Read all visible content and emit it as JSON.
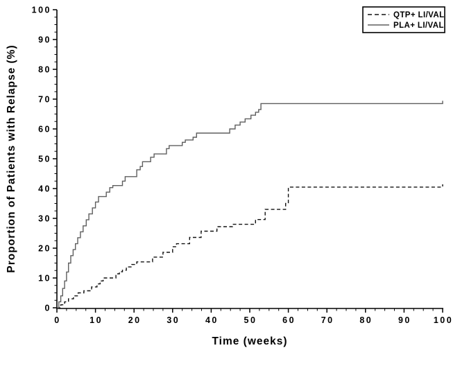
{
  "page": {
    "background": "#ffffff"
  },
  "chart_data": {
    "type": "line",
    "subtype": "kaplan-meier-step",
    "title": "",
    "xlabel": "Time (weeks)",
    "ylabel": "Proportion of Patients with Relapse (%)",
    "xlim": [
      0,
      100
    ],
    "ylim": [
      0,
      100
    ],
    "x_major_tick_step": 10,
    "x_minor_tick_step": 2.5,
    "y_major_tick_step": 10,
    "y_minor_tick_step": 2.5,
    "x_tick_labels": [
      "0",
      "10",
      "20",
      "30",
      "40",
      "50",
      "60",
      "70",
      "80",
      "90",
      "100"
    ],
    "y_tick_labels": [
      "0",
      "10",
      "20",
      "30",
      "40",
      "50",
      "60",
      "70",
      "80",
      "90",
      "100"
    ],
    "grid": false,
    "legend_position": "top-right",
    "axis_color": "#000000",
    "series": [
      {
        "name": "QTP+ LI/VAL",
        "line_style": "dashed",
        "color": "#111111",
        "points": [
          [
            0,
            0
          ],
          [
            1,
            1
          ],
          [
            2,
            2
          ],
          [
            3,
            3
          ],
          [
            4.3,
            4
          ],
          [
            5.5,
            5
          ],
          [
            7,
            5.7
          ],
          [
            9,
            7
          ],
          [
            10.4,
            8
          ],
          [
            11.2,
            9
          ],
          [
            12,
            10
          ],
          [
            15.3,
            11.4
          ],
          [
            16.2,
            12.1
          ],
          [
            17,
            12.6
          ],
          [
            18,
            13.7
          ],
          [
            19.4,
            14.5
          ],
          [
            20.7,
            15.4
          ],
          [
            24.8,
            17
          ],
          [
            27.5,
            18.6
          ],
          [
            30,
            20.5
          ],
          [
            31,
            21.5
          ],
          [
            34.4,
            23.6
          ],
          [
            37.4,
            25.7
          ],
          [
            41.5,
            27.2
          ],
          [
            45.5,
            28
          ],
          [
            51.5,
            29.6
          ],
          [
            54,
            33
          ],
          [
            59.3,
            35
          ],
          [
            60,
            40.5
          ],
          [
            100,
            40.5
          ]
        ]
      },
      {
        "name": "PLA+ LI/VAL",
        "line_style": "solid",
        "color": "#5e5e5e",
        "points": [
          [
            0,
            0
          ],
          [
            0.5,
            2
          ],
          [
            1,
            4
          ],
          [
            1.5,
            6.5
          ],
          [
            2,
            9
          ],
          [
            2.5,
            12
          ],
          [
            3,
            15
          ],
          [
            3.6,
            17.5
          ],
          [
            4.2,
            19.5
          ],
          [
            4.8,
            21.5
          ],
          [
            5.4,
            23.5
          ],
          [
            6.1,
            25.5
          ],
          [
            6.8,
            27.5
          ],
          [
            7.6,
            29.5
          ],
          [
            8.3,
            31.5
          ],
          [
            9.2,
            33.5
          ],
          [
            10,
            35.5
          ],
          [
            10.8,
            37.3
          ],
          [
            12.8,
            38.8
          ],
          [
            13.7,
            40.3
          ],
          [
            14.5,
            41
          ],
          [
            17,
            42.5
          ],
          [
            17.7,
            44
          ],
          [
            20.7,
            46.3
          ],
          [
            21.6,
            47.4
          ],
          [
            22.2,
            49
          ],
          [
            24.3,
            50.5
          ],
          [
            25.2,
            51.6
          ],
          [
            28.4,
            53.4
          ],
          [
            29.1,
            54.4
          ],
          [
            32.5,
            55.5
          ],
          [
            33.3,
            56.3
          ],
          [
            35.3,
            57.2
          ],
          [
            36.2,
            58.6
          ],
          [
            44.8,
            60
          ],
          [
            46.2,
            61.3
          ],
          [
            47.5,
            62.3
          ],
          [
            48.8,
            63.4
          ],
          [
            50.3,
            64.6
          ],
          [
            51.5,
            65.6
          ],
          [
            52.3,
            66.5
          ],
          [
            52.9,
            68.5
          ],
          [
            100,
            68.5
          ]
        ]
      }
    ]
  }
}
